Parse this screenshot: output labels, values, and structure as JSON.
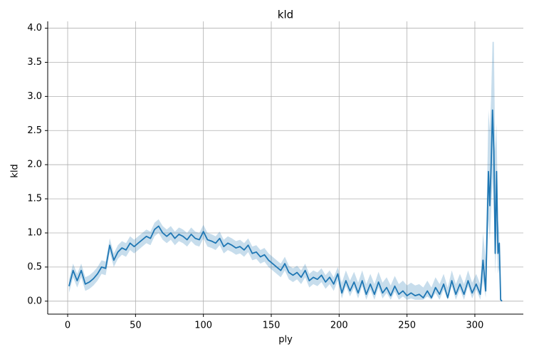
{
  "chart_data": {
    "type": "line",
    "title": "kld",
    "xlabel": "ply",
    "ylabel": "kld",
    "xlim": [
      -14.7,
      335.7
    ],
    "ylim": [
      -0.19,
      4.1
    ],
    "xticks": [
      0,
      50,
      100,
      150,
      200,
      250,
      300
    ],
    "yticks": [
      {
        "value": 0,
        "label": "0.0"
      },
      0.5,
      {
        "value": 1,
        "label": "1.0"
      },
      1.5,
      {
        "value": 2,
        "label": "2.0"
      },
      2.5,
      {
        "value": 3,
        "label": "3.0"
      },
      3.5,
      {
        "value": 4,
        "label": "4.0"
      }
    ],
    "grid": true,
    "x": [
      1,
      4,
      7,
      10,
      13,
      16,
      19,
      22,
      25,
      28,
      31,
      34,
      37,
      40,
      43,
      46,
      49,
      52,
      55,
      58,
      61,
      64,
      67,
      70,
      73,
      76,
      79,
      82,
      85,
      88,
      91,
      94,
      97,
      100,
      103,
      106,
      109,
      112,
      115,
      118,
      121,
      124,
      127,
      130,
      133,
      136,
      139,
      142,
      145,
      148,
      151,
      154,
      157,
      160,
      163,
      166,
      169,
      172,
      175,
      178,
      181,
      184,
      187,
      190,
      193,
      196,
      199,
      202,
      205,
      208,
      211,
      214,
      217,
      220,
      223,
      226,
      229,
      232,
      235,
      238,
      241,
      244,
      247,
      250,
      253,
      256,
      259,
      262,
      265,
      268,
      271,
      274,
      277,
      280,
      283,
      286,
      289,
      292,
      295,
      298,
      301,
      304,
      306,
      308,
      310,
      311,
      312,
      313,
      314,
      315,
      316,
      317,
      318,
      319,
      320
    ],
    "series": [
      {
        "color": "#1f77b4",
        "band_opacity": 0.25,
        "values": [
          0.22,
          0.45,
          0.3,
          0.45,
          0.25,
          0.28,
          0.33,
          0.4,
          0.5,
          0.48,
          0.82,
          0.6,
          0.72,
          0.78,
          0.75,
          0.85,
          0.8,
          0.85,
          0.9,
          0.95,
          0.92,
          1.05,
          1.1,
          1.0,
          0.95,
          1.0,
          0.92,
          0.98,
          0.95,
          0.9,
          0.98,
          0.92,
          0.9,
          1.02,
          0.9,
          0.88,
          0.85,
          0.92,
          0.8,
          0.85,
          0.82,
          0.78,
          0.8,
          0.75,
          0.82,
          0.7,
          0.72,
          0.65,
          0.68,
          0.6,
          0.55,
          0.5,
          0.45,
          0.55,
          0.42,
          0.38,
          0.42,
          0.35,
          0.45,
          0.3,
          0.35,
          0.32,
          0.38,
          0.28,
          0.35,
          0.25,
          0.4,
          0.12,
          0.3,
          0.15,
          0.28,
          0.12,
          0.3,
          0.1,
          0.25,
          0.1,
          0.28,
          0.12,
          0.2,
          0.08,
          0.22,
          0.1,
          0.15,
          0.08,
          0.12,
          0.08,
          0.1,
          0.05,
          0.15,
          0.05,
          0.2,
          0.1,
          0.25,
          0.05,
          0.3,
          0.1,
          0.25,
          0.1,
          0.3,
          0.12,
          0.25,
          0.1,
          0.6,
          0.15,
          1.9,
          1.4,
          2.0,
          2.8,
          2.2,
          0.7,
          1.9,
          0.7,
          0.85,
          0.02,
          0.0
        ],
        "upper": [
          0.32,
          0.55,
          0.4,
          0.55,
          0.35,
          0.38,
          0.43,
          0.5,
          0.6,
          0.58,
          0.92,
          0.7,
          0.82,
          0.88,
          0.85,
          0.95,
          0.9,
          0.95,
          1.0,
          1.05,
          1.02,
          1.15,
          1.2,
          1.1,
          1.05,
          1.1,
          1.02,
          1.08,
          1.05,
          1.0,
          1.08,
          1.02,
          1.0,
          1.12,
          1.0,
          0.98,
          0.95,
          1.02,
          0.9,
          0.95,
          0.92,
          0.88,
          0.9,
          0.85,
          0.92,
          0.8,
          0.82,
          0.75,
          0.78,
          0.7,
          0.65,
          0.6,
          0.55,
          0.65,
          0.52,
          0.48,
          0.52,
          0.45,
          0.55,
          0.4,
          0.45,
          0.42,
          0.48,
          0.38,
          0.45,
          0.35,
          0.5,
          0.27,
          0.45,
          0.3,
          0.43,
          0.27,
          0.45,
          0.25,
          0.4,
          0.25,
          0.43,
          0.27,
          0.35,
          0.23,
          0.37,
          0.25,
          0.3,
          0.23,
          0.27,
          0.23,
          0.25,
          0.2,
          0.3,
          0.2,
          0.35,
          0.25,
          0.4,
          0.2,
          0.45,
          0.25,
          0.4,
          0.25,
          0.45,
          0.27,
          0.4,
          0.25,
          1.0,
          0.6,
          2.8,
          2.5,
          3.0,
          3.8,
          3.8,
          2.2,
          2.6,
          1.2,
          1.0,
          0.05,
          0.0
        ],
        "lower": [
          0.12,
          0.35,
          0.2,
          0.35,
          0.15,
          0.18,
          0.23,
          0.3,
          0.4,
          0.38,
          0.72,
          0.5,
          0.62,
          0.68,
          0.65,
          0.75,
          0.7,
          0.75,
          0.8,
          0.85,
          0.82,
          0.95,
          1.0,
          0.9,
          0.85,
          0.9,
          0.82,
          0.88,
          0.85,
          0.8,
          0.88,
          0.82,
          0.8,
          0.92,
          0.8,
          0.78,
          0.75,
          0.82,
          0.7,
          0.75,
          0.72,
          0.68,
          0.7,
          0.65,
          0.72,
          0.6,
          0.62,
          0.55,
          0.58,
          0.5,
          0.45,
          0.4,
          0.35,
          0.45,
          0.32,
          0.28,
          0.32,
          0.25,
          0.35,
          0.2,
          0.25,
          0.22,
          0.28,
          0.18,
          0.25,
          0.15,
          0.3,
          0.04,
          0.22,
          0.07,
          0.2,
          0.04,
          0.22,
          0.02,
          0.17,
          0.02,
          0.2,
          0.04,
          0.12,
          0.02,
          0.14,
          0.02,
          0.07,
          0.02,
          0.04,
          0.02,
          0.02,
          0.02,
          0.07,
          0.02,
          0.12,
          0.02,
          0.17,
          0.02,
          0.22,
          0.02,
          0.17,
          0.02,
          0.22,
          0.04,
          0.17,
          0.02,
          0.3,
          0.05,
          1.2,
          0.9,
          1.3,
          1.8,
          1.3,
          0.4,
          1.0,
          0.4,
          0.5,
          0.0,
          0.0
        ]
      }
    ]
  }
}
